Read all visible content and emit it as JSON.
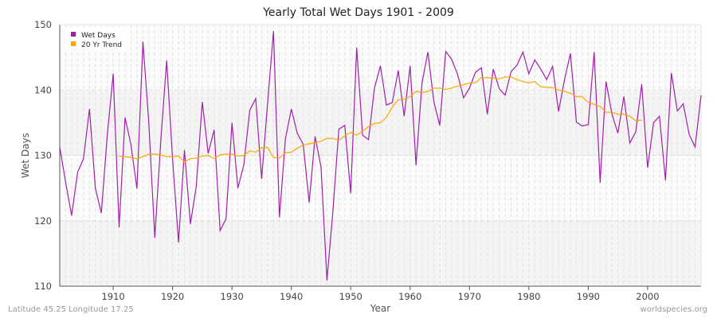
{
  "chart_data": {
    "type": "line",
    "title": "Yearly Total Wet Days 1901 - 2009",
    "xlabel": "Year",
    "ylabel": "Wet Days",
    "xlim": [
      1901,
      2009
    ],
    "ylim": [
      110,
      150
    ],
    "xticks": [
      1910,
      1920,
      1930,
      1940,
      1950,
      1960,
      1970,
      1980,
      1990,
      2000
    ],
    "yticks": [
      110,
      120,
      130,
      140,
      150
    ],
    "grid": true,
    "legend_position": "top-left",
    "series": [
      {
        "name": "Wet Days",
        "color": "#a020a8",
        "x_start": 1901,
        "values": [
          131.3,
          125.8,
          120.8,
          127.4,
          129.5,
          137.1,
          125.0,
          121.2,
          133.0,
          142.5,
          119.0,
          135.8,
          131.6,
          124.9,
          147.4,
          135.0,
          117.4,
          132.0,
          144.5,
          129.5,
          116.7,
          130.8,
          119.5,
          125.3,
          138.2,
          130.3,
          133.9,
          118.5,
          120.3,
          135.0,
          125.0,
          128.6,
          136.9,
          138.7,
          126.4,
          138.0,
          149.0,
          120.5,
          132.5,
          137.1,
          133.4,
          131.7,
          122.8,
          132.9,
          128.2,
          110.9,
          121.5,
          134.0,
          134.6,
          124.2,
          146.5,
          133.1,
          132.4,
          140.3,
          143.7,
          137.7,
          138.1,
          143.0,
          136.0,
          143.7,
          128.5,
          141.1,
          145.8,
          138.2,
          134.6,
          145.9,
          144.7,
          142.4,
          138.8,
          140.3,
          142.7,
          143.4,
          136.3,
          143.2,
          140.2,
          139.2,
          142.8,
          143.8,
          145.8,
          142.5,
          144.6,
          143.2,
          141.6,
          143.6,
          136.7,
          141.6,
          145.6,
          135.1,
          134.5,
          134.7,
          145.8,
          125.8,
          141.3,
          136.3,
          133.4,
          139.0,
          131.9,
          133.6,
          140.9,
          128.1,
          135.0,
          136.0,
          126.2,
          142.6,
          136.8,
          137.9,
          133.2,
          131.3,
          139.2
        ]
      },
      {
        "name": "20 Yr Trend",
        "color": "#ffa500",
        "x_start": 1911,
        "values": [
          129.9,
          129.8,
          129.7,
          129.5,
          129.8,
          130.2,
          130.2,
          130.1,
          129.8,
          129.8,
          129.9,
          129.0,
          129.5,
          129.6,
          129.9,
          130.0,
          129.5,
          130.1,
          130.2,
          130.2,
          129.9,
          130.0,
          130.7,
          130.5,
          131.2,
          131.2,
          129.7,
          129.6,
          130.4,
          130.5,
          131.1,
          131.6,
          131.8,
          131.9,
          132.2,
          132.6,
          132.6,
          132.3,
          133.0,
          133.5,
          133.1,
          133.7,
          134.4,
          134.9,
          135.0,
          135.8,
          137.4,
          138.5,
          138.6,
          139.0,
          139.8,
          139.6,
          139.8,
          140.3,
          140.3,
          140.1,
          140.3,
          140.6,
          140.8,
          141.1,
          141.1,
          141.9,
          141.9,
          141.8,
          141.7,
          142.0,
          142.0,
          141.6,
          141.3,
          141.1,
          141.3,
          140.5,
          140.4,
          140.4,
          140.0,
          139.8,
          139.5,
          139.0,
          139.0,
          138.1,
          137.8,
          137.5,
          136.6,
          136.6,
          136.3,
          136.3,
          136.0,
          135.3,
          135.4
        ]
      }
    ]
  },
  "footer": {
    "location": "Latitude 45.25 Longitude 17.25",
    "source": "worldspecies.org"
  }
}
